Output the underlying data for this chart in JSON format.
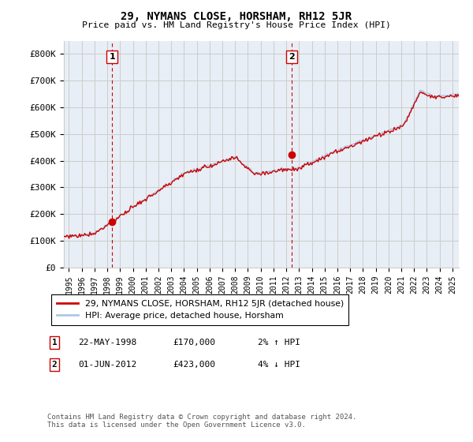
{
  "title": "29, NYMANS CLOSE, HORSHAM, RH12 5JR",
  "subtitle": "Price paid vs. HM Land Registry's House Price Index (HPI)",
  "ylabel_ticks": [
    "£0",
    "£100K",
    "£200K",
    "£300K",
    "£400K",
    "£500K",
    "£600K",
    "£700K",
    "£800K"
  ],
  "ytick_values": [
    0,
    100000,
    200000,
    300000,
    400000,
    500000,
    600000,
    700000,
    800000
  ],
  "ylim": [
    0,
    850000
  ],
  "xlim_start": 1994.6,
  "xlim_end": 2025.5,
  "sale1": {
    "date_num": 1998.38,
    "price": 170000,
    "label": "1",
    "pct": "2%",
    "dir": "↑",
    "date_str": "22-MAY-1998"
  },
  "sale2": {
    "date_num": 2012.42,
    "price": 423000,
    "label": "2",
    "pct": "4%",
    "dir": "↓",
    "date_str": "01-JUN-2012"
  },
  "legend_line1": "29, NYMANS CLOSE, HORSHAM, RH12 5JR (detached house)",
  "legend_line2": "HPI: Average price, detached house, Horsham",
  "table_row1": [
    "1",
    "22-MAY-1998",
    "£170,000",
    "2% ↑ HPI"
  ],
  "table_row2": [
    "2",
    "01-JUN-2012",
    "£423,000",
    "4% ↓ HPI"
  ],
  "footnote": "Contains HM Land Registry data © Crown copyright and database right 2024.\nThis data is licensed under the Open Government Licence v3.0.",
  "hpi_color": "#aec6e8",
  "price_color": "#cc0000",
  "vline_color": "#cc0000",
  "grid_color": "#cccccc",
  "background_color": "#ffffff",
  "plot_bg_color": "#e8eef5"
}
